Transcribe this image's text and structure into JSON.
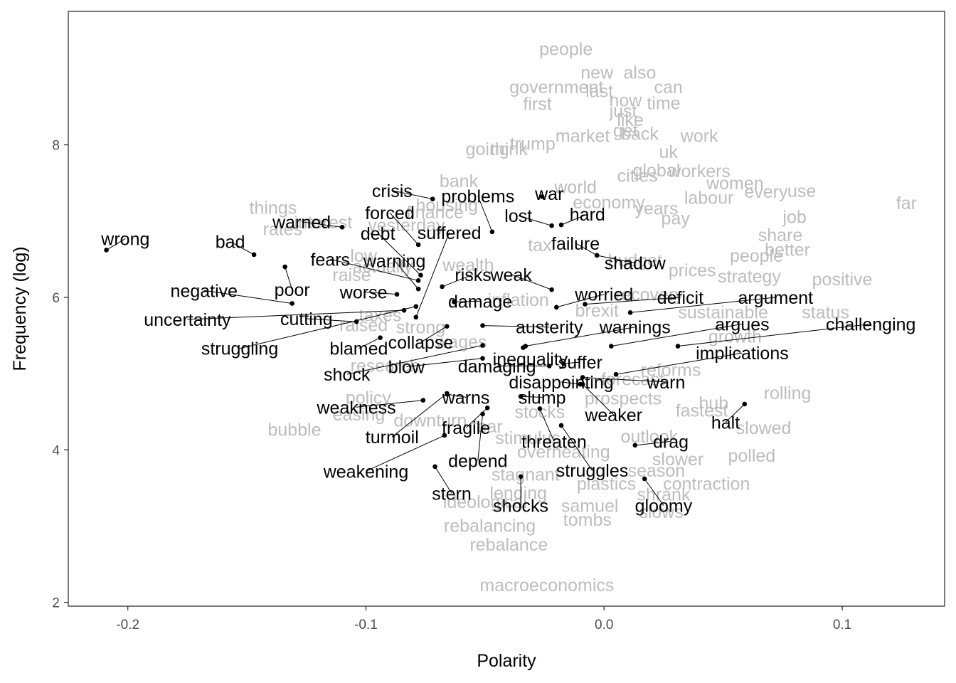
{
  "chart_data": {
    "type": "scatter",
    "xlabel": "Polarity",
    "ylabel": "Frequency (log)",
    "xlim": [
      -0.225,
      0.143
    ],
    "ylim": [
      1.95,
      9.75
    ],
    "xticks": [
      -0.2,
      -0.1,
      0.0,
      0.1
    ],
    "xtick_labels": [
      "-0.2",
      "-0.1",
      "0.0",
      "0.1"
    ],
    "yticks": [
      2,
      4,
      6,
      8
    ],
    "ytick_labels": [
      "2",
      "4",
      "6",
      "8"
    ],
    "grid": false,
    "highlighted": [
      {
        "word": "wrong",
        "x": -0.209,
        "y": 6.62,
        "lx": -0.201,
        "ly": 6.77
      },
      {
        "word": "bad",
        "x": -0.147,
        "y": 6.56,
        "lx": -0.157,
        "ly": 6.73
      },
      {
        "word": "warned",
        "x": -0.11,
        "y": 6.92,
        "lx": -0.127,
        "ly": 6.99
      },
      {
        "word": "negative",
        "x": -0.131,
        "y": 5.92,
        "lx": -0.168,
        "ly": 6.09
      },
      {
        "word": "poor",
        "x": -0.134,
        "y": 6.4,
        "lx": -0.131,
        "ly": 6.1
      },
      {
        "word": "uncertainty",
        "x": -0.084,
        "y": 5.83,
        "lx": -0.175,
        "ly": 5.71
      },
      {
        "word": "cutting",
        "x": -0.104,
        "y": 5.68,
        "lx": -0.125,
        "ly": 5.72
      },
      {
        "word": "struggling",
        "x": -0.079,
        "y": 5.88,
        "lx": -0.153,
        "ly": 5.33
      },
      {
        "word": "blamed",
        "x": -0.094,
        "y": 5.47,
        "lx": -0.103,
        "ly": 5.33
      },
      {
        "word": "crisis",
        "x": -0.072,
        "y": 7.29,
        "lx": -0.089,
        "ly": 7.4
      },
      {
        "word": "forced",
        "x": -0.078,
        "y": 6.69,
        "lx": -0.09,
        "ly": 7.11
      },
      {
        "word": "debt",
        "x": -0.077,
        "y": 6.29,
        "lx": -0.095,
        "ly": 6.84
      },
      {
        "word": "fears",
        "x": -0.078,
        "y": 6.22,
        "lx": -0.115,
        "ly": 6.5
      },
      {
        "word": "warning",
        "x": -0.078,
        "y": 6.11,
        "lx": -0.088,
        "ly": 6.48
      },
      {
        "word": "worse",
        "x": -0.087,
        "y": 6.04,
        "lx": -0.101,
        "ly": 6.07
      },
      {
        "word": "suffered",
        "x": -0.079,
        "y": 5.74,
        "lx": -0.065,
        "ly": 6.85
      },
      {
        "word": "problems",
        "x": -0.047,
        "y": 6.86,
        "lx": -0.053,
        "ly": 7.33
      },
      {
        "word": "war",
        "x": -0.026,
        "y": 7.32,
        "lx": -0.023,
        "ly": 7.36
      },
      {
        "word": "lost",
        "x": -0.022,
        "y": 6.94,
        "lx": -0.036,
        "ly": 7.07
      },
      {
        "word": "hard",
        "x": -0.018,
        "y": 6.95,
        "lx": -0.007,
        "ly": 7.09
      },
      {
        "word": "failure",
        "x": -0.003,
        "y": 6.55,
        "lx": -0.012,
        "ly": 6.71
      },
      {
        "word": "shadow",
        "x": -0.003,
        "y": 6.55,
        "lx": 0.013,
        "ly": 6.45
      },
      {
        "word": "risks",
        "x": -0.068,
        "y": 6.14,
        "lx": -0.055,
        "ly": 6.3
      },
      {
        "word": "weak",
        "x": -0.022,
        "y": 6.1,
        "lx": -0.039,
        "ly": 6.3
      },
      {
        "word": "damage",
        "x": -0.063,
        "y": 5.94,
        "lx": -0.052,
        "ly": 5.95
      },
      {
        "word": "worried",
        "x": -0.02,
        "y": 5.87,
        "lx": 0.0,
        "ly": 6.04
      },
      {
        "word": "deficit",
        "x": -0.008,
        "y": 5.91,
        "lx": 0.032,
        "ly": 6.0
      },
      {
        "word": "argument",
        "x": 0.011,
        "y": 5.8,
        "lx": 0.072,
        "ly": 6.0
      },
      {
        "word": "collapse",
        "x": -0.066,
        "y": 5.62,
        "lx": -0.077,
        "ly": 5.41
      },
      {
        "word": "austerity",
        "x": -0.051,
        "y": 5.63,
        "lx": -0.023,
        "ly": 5.61
      },
      {
        "word": "warnings",
        "x": -0.033,
        "y": 5.36,
        "lx": 0.013,
        "ly": 5.61
      },
      {
        "word": "argues",
        "x": 0.003,
        "y": 5.36,
        "lx": 0.058,
        "ly": 5.65
      },
      {
        "word": "challenging",
        "x": 0.031,
        "y": 5.36,
        "lx": 0.112,
        "ly": 5.65
      },
      {
        "word": "implications",
        "x": 0.005,
        "y": 4.99,
        "lx": 0.058,
        "ly": 5.27
      },
      {
        "word": "shock",
        "x": -0.051,
        "y": 5.37,
        "lx": -0.108,
        "ly": 4.99
      },
      {
        "word": "blow",
        "x": -0.051,
        "y": 5.2,
        "lx": -0.083,
        "ly": 5.09
      },
      {
        "word": "inequality",
        "x": -0.034,
        "y": 5.34,
        "lx": -0.031,
        "ly": 5.19
      },
      {
        "word": "damaging",
        "x": -0.023,
        "y": 5.1,
        "lx": -0.045,
        "ly": 5.1
      },
      {
        "word": "suffer",
        "x": -0.017,
        "y": 5.13,
        "lx": -0.01,
        "ly": 5.15
      },
      {
        "word": "disappointing",
        "x": -0.01,
        "y": 4.86,
        "lx": -0.018,
        "ly": 4.89
      },
      {
        "word": "warn",
        "x": -0.009,
        "y": 4.95,
        "lx": 0.026,
        "ly": 4.89
      },
      {
        "word": "weakness",
        "x": -0.076,
        "y": 4.65,
        "lx": -0.104,
        "ly": 4.56
      },
      {
        "word": "warns",
        "x": -0.066,
        "y": 4.73,
        "lx": -0.058,
        "ly": 4.69
      },
      {
        "word": "slump",
        "x": -0.035,
        "y": 4.7,
        "lx": -0.026,
        "ly": 4.69
      },
      {
        "word": "weaker",
        "x": -0.009,
        "y": 4.86,
        "lx": 0.004,
        "ly": 4.46
      },
      {
        "word": "halt",
        "x": 0.059,
        "y": 4.6,
        "lx": 0.051,
        "ly": 4.36
      },
      {
        "word": "turmoil",
        "x": -0.066,
        "y": 4.74,
        "lx": -0.089,
        "ly": 4.17
      },
      {
        "word": "fragile",
        "x": -0.049,
        "y": 4.55,
        "lx": -0.058,
        "ly": 4.29
      },
      {
        "word": "threaten",
        "x": -0.027,
        "y": 4.54,
        "lx": -0.021,
        "ly": 4.11
      },
      {
        "word": "drag",
        "x": 0.013,
        "y": 4.06,
        "lx": 0.028,
        "ly": 4.11
      },
      {
        "word": "weakening",
        "x": -0.067,
        "y": 4.19,
        "lx": -0.1,
        "ly": 3.72
      },
      {
        "word": "depend",
        "x": -0.051,
        "y": 4.47,
        "lx": -0.053,
        "ly": 3.86
      },
      {
        "word": "struggles",
        "x": -0.018,
        "y": 4.32,
        "lx": -0.005,
        "ly": 3.73
      },
      {
        "word": "stern",
        "x": -0.071,
        "y": 3.78,
        "lx": -0.064,
        "ly": 3.43
      },
      {
        "word": "shocks",
        "x": -0.035,
        "y": 3.65,
        "lx": -0.035,
        "ly": 3.27
      },
      {
        "word": "gloomy",
        "x": 0.017,
        "y": 3.62,
        "lx": 0.025,
        "ly": 3.27
      }
    ],
    "background": [
      {
        "word": "people",
        "x": -0.016,
        "y": 9.26
      },
      {
        "word": "new",
        "x": -0.003,
        "y": 8.95
      },
      {
        "word": "also",
        "x": 0.015,
        "y": 8.95
      },
      {
        "word": "government",
        "x": -0.02,
        "y": 8.76
      },
      {
        "word": "last",
        "x": -0.002,
        "y": 8.71
      },
      {
        "word": "can",
        "x": 0.027,
        "y": 8.76
      },
      {
        "word": "first",
        "x": -0.028,
        "y": 8.54
      },
      {
        "word": "now",
        "x": 0.009,
        "y": 8.59
      },
      {
        "word": "time",
        "x": 0.025,
        "y": 8.55
      },
      {
        "word": "just",
        "x": 0.008,
        "y": 8.45
      },
      {
        "word": "like",
        "x": 0.011,
        "y": 8.33
      },
      {
        "word": "work",
        "x": 0.04,
        "y": 8.12
      },
      {
        "word": "things",
        "x": -0.139,
        "y": 7.18
      },
      {
        "word": "rates",
        "x": -0.135,
        "y": 6.9
      },
      {
        "word": "interest",
        "x": -0.118,
        "y": 6.99
      },
      {
        "word": "raise",
        "x": -0.106,
        "y": 6.3
      },
      {
        "word": "bank",
        "x": -0.061,
        "y": 7.53
      },
      {
        "word": "going",
        "x": -0.049,
        "y": 7.95
      },
      {
        "word": "women",
        "x": 0.055,
        "y": 7.5
      },
      {
        "word": "use",
        "x": 0.083,
        "y": 7.4
      },
      {
        "word": "every",
        "x": 0.068,
        "y": 7.39
      },
      {
        "word": "far",
        "x": 0.127,
        "y": 7.24
      },
      {
        "word": "job",
        "x": 0.08,
        "y": 7.06
      },
      {
        "word": "share",
        "x": 0.074,
        "y": 6.82
      },
      {
        "word": "better",
        "x": 0.077,
        "y": 6.63
      },
      {
        "word": "people",
        "x": 0.064,
        "y": 6.55
      },
      {
        "word": "strategy",
        "x": 0.061,
        "y": 6.28
      },
      {
        "word": "positive",
        "x": 0.1,
        "y": 6.24
      },
      {
        "word": "status",
        "x": 0.093,
        "y": 5.81
      },
      {
        "word": "sustainable",
        "x": 0.05,
        "y": 5.81
      },
      {
        "word": "growth",
        "x": 0.055,
        "y": 5.49
      },
      {
        "word": "rolling",
        "x": 0.077,
        "y": 4.75
      },
      {
        "word": "hub",
        "x": 0.046,
        "y": 4.62
      },
      {
        "word": "fastest",
        "x": 0.041,
        "y": 4.52
      },
      {
        "word": "slowed",
        "x": 0.067,
        "y": 4.29
      },
      {
        "word": "polled",
        "x": 0.062,
        "y": 3.93
      },
      {
        "word": "slower",
        "x": 0.031,
        "y": 3.88
      },
      {
        "word": "contraction",
        "x": 0.043,
        "y": 3.56
      },
      {
        "word": "shrank",
        "x": 0.025,
        "y": 3.42
      },
      {
        "word": "slows",
        "x": 0.024,
        "y": 3.19
      },
      {
        "word": "samuel",
        "x": -0.006,
        "y": 3.27
      },
      {
        "word": "tombs",
        "x": -0.007,
        "y": 3.09
      },
      {
        "word": "plastics",
        "x": 0.001,
        "y": 3.56
      },
      {
        "word": "stagnant",
        "x": -0.033,
        "y": 3.68
      },
      {
        "word": "ideological",
        "x": -0.05,
        "y": 3.32
      },
      {
        "word": "rebalancing",
        "x": -0.048,
        "y": 3.01
      },
      {
        "word": "rebalance",
        "x": -0.04,
        "y": 2.76
      },
      {
        "word": "macroeconomics",
        "x": -0.024,
        "y": 2.23
      },
      {
        "word": "bubble",
        "x": -0.13,
        "y": 4.27
      },
      {
        "word": "easing",
        "x": -0.103,
        "y": 4.47
      },
      {
        "word": "policy",
        "x": -0.099,
        "y": 4.69
      },
      {
        "word": "research",
        "x": -0.092,
        "y": 5.11
      },
      {
        "word": "taxes",
        "x": -0.094,
        "y": 5.77
      },
      {
        "word": "raised",
        "x": -0.101,
        "y": 5.64
      },
      {
        "word": "low",
        "x": -0.101,
        "y": 6.55
      },
      {
        "word": "actually",
        "x": -0.093,
        "y": 6.41
      },
      {
        "word": "yesterday",
        "x": -0.083,
        "y": 6.95
      },
      {
        "word": "finance",
        "x": -0.071,
        "y": 7.12
      },
      {
        "word": "think",
        "x": -0.04,
        "y": 7.95
      },
      {
        "word": "trump",
        "x": -0.03,
        "y": 8.02
      },
      {
        "word": "market",
        "x": -0.009,
        "y": 8.12
      },
      {
        "word": "back",
        "x": 0.015,
        "y": 8.15
      },
      {
        "word": "get",
        "x": 0.009,
        "y": 8.19
      },
      {
        "word": "uk",
        "x": 0.027,
        "y": 7.91
      },
      {
        "word": "cities",
        "x": 0.014,
        "y": 7.6
      },
      {
        "word": "world",
        "x": -0.012,
        "y": 7.45
      },
      {
        "word": "economy",
        "x": 0.002,
        "y": 7.25
      },
      {
        "word": "years",
        "x": 0.022,
        "y": 7.17
      },
      {
        "word": "pay",
        "x": 0.03,
        "y": 7.04
      },
      {
        "word": "tax",
        "x": -0.027,
        "y": 6.69
      },
      {
        "word": "budget",
        "x": 0.013,
        "y": 6.49
      },
      {
        "word": "prices",
        "x": 0.037,
        "y": 6.36
      },
      {
        "word": "recovery",
        "x": 0.019,
        "y": 6.04
      },
      {
        "word": "brexit",
        "x": -0.003,
        "y": 5.83
      },
      {
        "word": "inflation",
        "x": -0.036,
        "y": 5.97
      },
      {
        "word": "reforms",
        "x": 0.028,
        "y": 5.05
      },
      {
        "word": "forecast",
        "x": 0.012,
        "y": 4.93
      },
      {
        "word": "prospects",
        "x": 0.008,
        "y": 4.68
      },
      {
        "word": "downturn",
        "x": -0.073,
        "y": 4.39
      },
      {
        "word": "stocks",
        "x": -0.027,
        "y": 4.5
      },
      {
        "word": "fear",
        "x": -0.049,
        "y": 4.31
      },
      {
        "word": "stimulus",
        "x": -0.032,
        "y": 4.16
      },
      {
        "word": "overheating",
        "x": -0.017,
        "y": 3.98
      },
      {
        "word": "outlook",
        "x": 0.019,
        "y": 4.18
      },
      {
        "word": "lending",
        "x": -0.036,
        "y": 3.44
      },
      {
        "word": "season",
        "x": 0.022,
        "y": 3.73
      },
      {
        "word": "wages",
        "x": -0.06,
        "y": 5.42
      },
      {
        "word": "strong",
        "x": -0.077,
        "y": 5.61
      },
      {
        "word": "wealth",
        "x": -0.057,
        "y": 6.43
      },
      {
        "word": "housing",
        "x": -0.066,
        "y": 7.21
      },
      {
        "word": "workers",
        "x": 0.04,
        "y": 7.66
      },
      {
        "word": "global",
        "x": 0.022,
        "y": 7.67
      },
      {
        "word": "labour",
        "x": 0.044,
        "y": 7.31
      }
    ]
  }
}
